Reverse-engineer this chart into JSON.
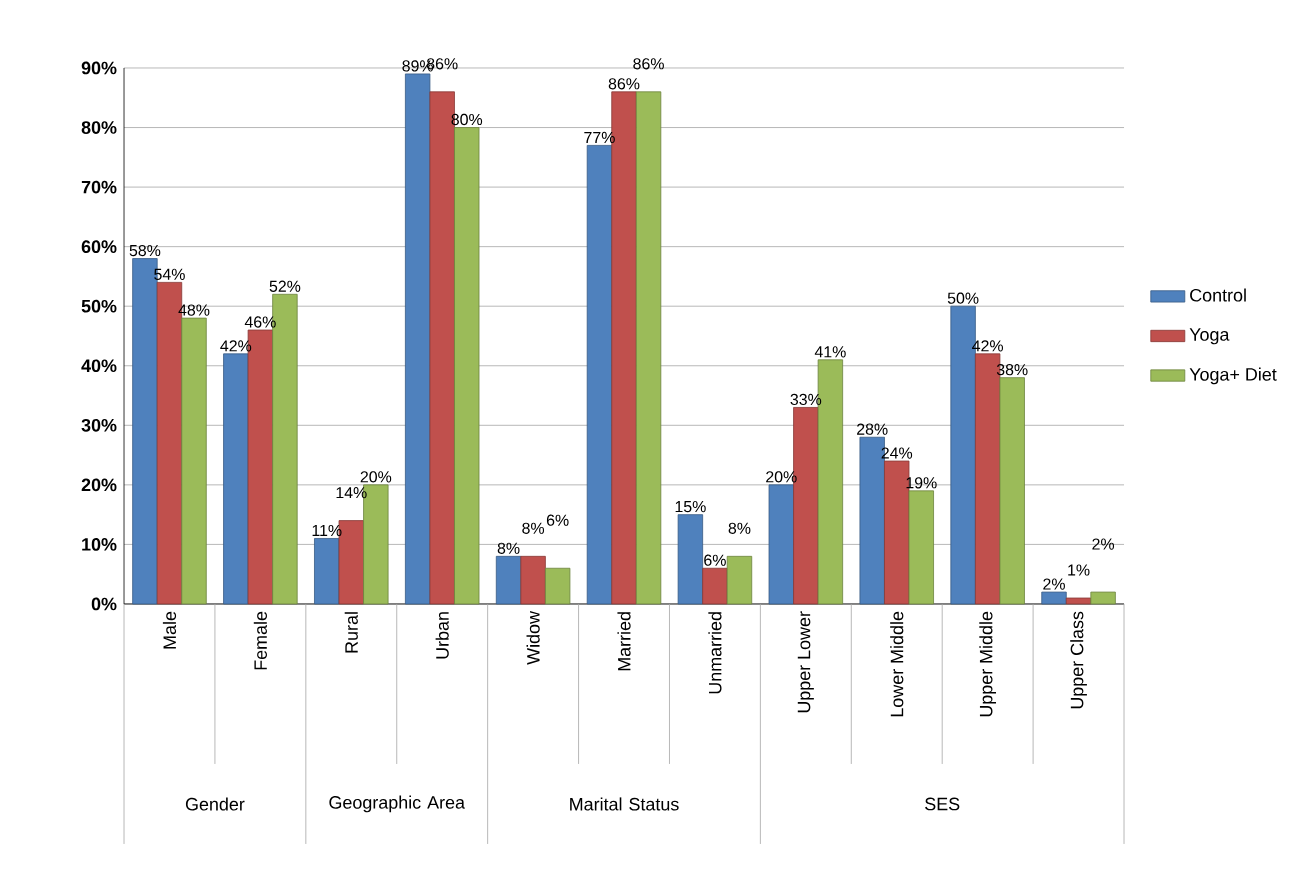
{
  "chart_data": {
    "type": "bar",
    "categories": [
      "Male",
      "Female",
      "Rural",
      "Urban",
      "Widow",
      "Married",
      "Unmarried",
      "Upper Lower",
      "Lower Middle",
      "Upper Middle",
      "Upper Class"
    ],
    "series": [
      {
        "name": "Control",
        "color": "#4f81bd",
        "values": [
          58,
          42,
          11,
          89,
          8,
          77,
          15,
          20,
          28,
          50,
          2
        ],
        "value_labels": [
          "58%",
          "42%",
          "11%",
          "89%",
          "8%",
          "77%",
          "15%",
          "20%",
          "28%",
          "50%",
          "2%"
        ]
      },
      {
        "name": "Yoga",
        "color": "#c0504d",
        "values": [
          54,
          46,
          14,
          86,
          8,
          86,
          6,
          33,
          24,
          42,
          1
        ],
        "value_labels": [
          "54%",
          "46%",
          "14%",
          "86%",
          "8%",
          "86%",
          "6%",
          "33%",
          "24%",
          "42%",
          "1%"
        ]
      },
      {
        "name": "Yoga+ Diet",
        "color": "#9bbb59",
        "values": [
          48,
          52,
          20,
          80,
          6,
          86,
          8,
          41,
          19,
          38,
          2
        ],
        "value_labels": [
          "48%",
          "52%",
          "20%",
          "80%",
          "6%",
          "86%",
          "8%",
          "41%",
          "19%",
          "38%",
          "2%"
        ]
      }
    ],
    "annotations": [
      "Gender",
      "Geographic Area",
      "Marital Status",
      "SES"
    ],
    "ylim": [
      0,
      90
    ],
    "yticks": [
      {
        "value": 0,
        "label": "0%"
      },
      {
        "value": 10,
        "label": "10%"
      },
      {
        "value": 20,
        "label": "20%"
      },
      {
        "value": 30,
        "label": "30%"
      },
      {
        "value": 40,
        "label": "40%"
      },
      {
        "value": 50,
        "label": "50%"
      },
      {
        "value": 60,
        "label": "60%"
      },
      {
        "value": 70,
        "label": "70%"
      },
      {
        "value": 80,
        "label": "80%"
      },
      {
        "value": 90,
        "label": "90%"
      }
    ],
    "grid": "y",
    "legend": "right"
  }
}
